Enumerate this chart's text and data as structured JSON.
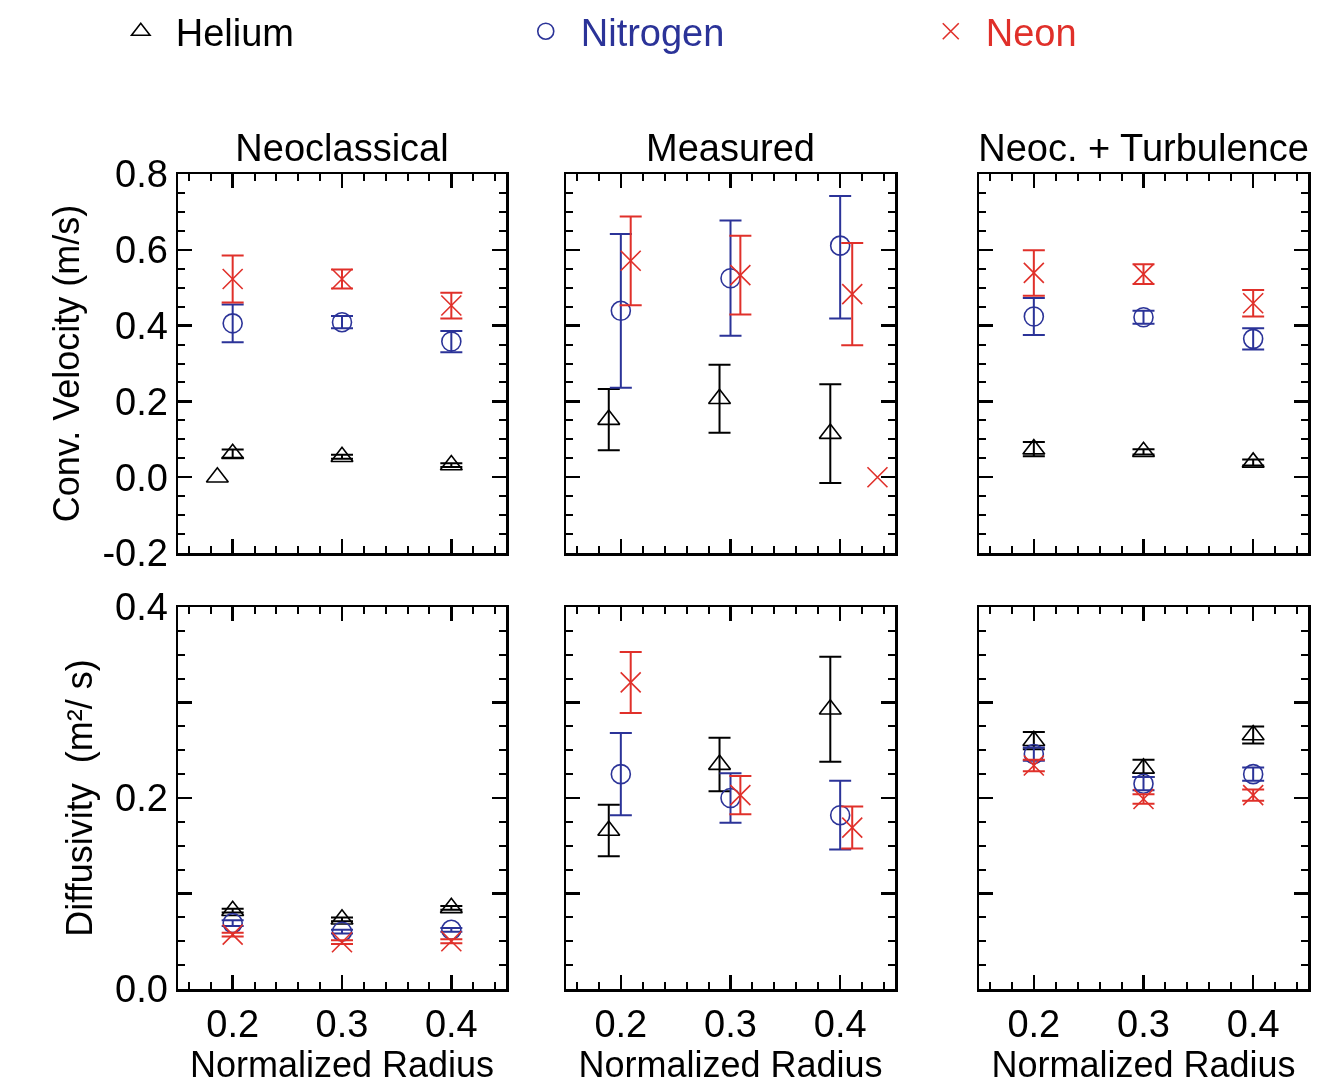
{
  "chart_data": [
    {
      "type": "scatter",
      "title": "Neoclassical",
      "ylabel": "Conv. Velocity (m/s)",
      "xlim": [
        0.15,
        0.45
      ],
      "xticks": [
        0.2,
        0.3,
        0.4
      ],
      "ylim": [
        -0.2,
        0.8
      ],
      "yticks": [
        -0.2,
        {
          "value": 0,
          "label": "0.0"
        },
        0.2,
        0.4,
        0.6,
        0.8
      ],
      "tick_labels": "y",
      "legend": "top",
      "series": [
        {
          "name": "Helium",
          "color": "#000000",
          "marker": "triangle",
          "x": [
            0.186,
            0.2,
            0.3,
            0.4
          ],
          "values": [
            0,
            0.062,
            0.054,
            0.032
          ],
          "errors": [
            null,
            0.011,
            0.005,
            0.005
          ]
        },
        {
          "name": "Nitrogen",
          "color": "#2b3398",
          "marker": "circle",
          "x": [
            0.2,
            0.3,
            0.4
          ],
          "values": [
            0.406,
            0.409,
            0.358
          ],
          "errors": [
            0.05,
            0.016,
            0.028
          ]
        },
        {
          "name": "Neon",
          "color": "#e0302a",
          "marker": "cross",
          "x": [
            0.2,
            0.3,
            0.4
          ],
          "values": [
            0.523,
            0.523,
            0.453
          ],
          "errors": [
            0.062,
            0.025,
            0.034
          ]
        }
      ]
    },
    {
      "type": "scatter",
      "title": "Measured",
      "xlim": [
        0.15,
        0.45
      ],
      "xticks": [
        0.2,
        0.3,
        0.4
      ],
      "ylim": [
        -0.2,
        0.8
      ],
      "yticks": [
        -0.2,
        0,
        0.2,
        0.4,
        0.6,
        0.8
      ],
      "tick_labels": false,
      "series": [
        {
          "color": "#000000",
          "marker": "triangle",
          "x": [
            0.189,
            0.29,
            0.391
          ],
          "values": [
            0.152,
            0.207,
            0.115
          ],
          "errors": [
            0.081,
            0.09,
            0.13
          ]
        },
        {
          "color": "#2b3398",
          "marker": "circle",
          "x": [
            0.2,
            0.3,
            0.4
          ],
          "values": [
            0.439,
            0.525,
            0.611
          ],
          "errors": [
            0.203,
            0.152,
            [
              0.419,
              0.742
            ]
          ]
        },
        {
          "color": "#e0302a",
          "marker": "cross",
          "x": [
            0.209,
            0.309,
            0.411,
            0.434
          ],
          "values": [
            0.571,
            0.533,
            0.483,
            0
          ],
          "errors": [
            0.117,
            0.104,
            0.135,
            null
          ]
        }
      ]
    },
    {
      "type": "scatter",
      "title": "Neoc. + Turbulence",
      "xlim": [
        0.15,
        0.45
      ],
      "xticks": [
        0.2,
        0.3,
        0.4
      ],
      "ylim": [
        -0.2,
        0.8
      ],
      "yticks": [
        -0.2,
        0,
        0.2,
        0.4,
        0.6,
        0.8
      ],
      "tick_labels": false,
      "series": [
        {
          "color": "#000000",
          "marker": "triangle",
          "x": [
            0.2,
            0.3,
            0.4
          ],
          "values": [
            0.074,
            0.067,
            0.039
          ],
          "errors": [
            0.019,
            0.007,
            0.008
          ]
        },
        {
          "color": "#2b3398",
          "marker": "circle",
          "x": [
            0.2,
            0.3,
            0.4
          ],
          "values": [
            0.424,
            0.422,
            0.365
          ],
          "errors": [
            0.049,
            0.017,
            0.028
          ]
        },
        {
          "color": "#e0302a",
          "marker": "cross",
          "x": [
            0.2,
            0.3,
            0.4
          ],
          "values": [
            0.539,
            0.536,
            0.459
          ],
          "errors": [
            0.06,
            0.026,
            0.035
          ]
        }
      ]
    },
    {
      "type": "scatter",
      "xlabel": "Normalized Radius",
      "ylabel": "Diffusivity  (m²/ s)",
      "xlim": [
        0.15,
        0.45
      ],
      "xticks": [
        0.2,
        0.3,
        0.4
      ],
      "ylim": [
        0,
        0.4
      ],
      "yticks": [
        {
          "value": 0,
          "label": "0.0"
        },
        {
          "value": 0.1,
          "label": null
        },
        0.2,
        {
          "value": 0.3,
          "label": null
        },
        0.4
      ],
      "series": [
        {
          "color": "#000000",
          "marker": "triangle",
          "x": [
            0.2,
            0.3,
            0.4
          ],
          "values": [
            0.082,
            0.073,
            0.085
          ],
          "errors": [
            0.002,
            0.002,
            0.002
          ]
        },
        {
          "color": "#2b3398",
          "marker": "circle",
          "x": [
            0.2,
            0.3,
            0.4
          ],
          "values": [
            0.069,
            0.06,
            0.062
          ],
          "errors": [
            0.003,
            0.002,
            0.002
          ]
        },
        {
          "color": "#e0302a",
          "marker": "cross",
          "x": [
            0.2,
            0.3,
            0.4
          ],
          "values": [
            0.057,
            0.049,
            0.05
          ],
          "errors": [
            0.002,
            0.002,
            0.002
          ]
        }
      ]
    },
    {
      "type": "scatter",
      "xlabel": "Normalized Radius",
      "xlim": [
        0.15,
        0.45
      ],
      "xticks": [
        0.2,
        0.3,
        0.4
      ],
      "ylim": [
        0,
        0.4
      ],
      "yticks": [
        0,
        0.1,
        0.2,
        0.3,
        0.4
      ],
      "tick_labels": "x",
      "series": [
        {
          "color": "#000000",
          "marker": "triangle",
          "x": [
            0.189,
            0.29,
            0.391
          ],
          "values": [
            0.166,
            0.235,
            0.293
          ],
          "errors": [
            0.027,
            0.028,
            0.055
          ]
        },
        {
          "color": "#2b3398",
          "marker": "circle",
          "x": [
            0.2,
            0.3,
            0.4
          ],
          "values": [
            0.225,
            0.2,
            0.182
          ],
          "errors": [
            0.043,
            0.026,
            0.036
          ]
        },
        {
          "color": "#e0302a",
          "marker": "cross",
          "x": [
            0.209,
            0.309,
            0.411
          ],
          "values": [
            0.321,
            0.203,
            0.169
          ],
          "errors": [
            0.032,
            0.02,
            0.022
          ]
        }
      ]
    },
    {
      "type": "scatter",
      "xlabel": "Normalized Radius",
      "xlim": [
        0.15,
        0.45
      ],
      "xticks": [
        0.2,
        0.3,
        0.4
      ],
      "ylim": [
        0,
        0.4
      ],
      "yticks": [
        0,
        0.1,
        0.2,
        0.3,
        0.4
      ],
      "tick_labels": "x",
      "series": [
        {
          "color": "#000000",
          "marker": "triangle",
          "x": [
            0.2,
            0.3,
            0.4
          ],
          "values": [
            0.26,
            0.231,
            0.266
          ],
          "errors": [
            0.009,
            0.009,
            0.009
          ]
        },
        {
          "color": "#2b3398",
          "marker": "circle",
          "x": [
            0.2,
            0.3,
            0.4
          ],
          "values": [
            0.246,
            0.215,
            0.225
          ],
          "errors": [
            0.007,
            0.007,
            0.007
          ]
        },
        {
          "color": "#e0302a",
          "marker": "cross",
          "x": [
            0.2,
            0.3,
            0.4
          ],
          "values": [
            0.234,
            0.199,
            0.203
          ],
          "errors": [
            0.006,
            0.005,
            0.006
          ]
        }
      ]
    }
  ]
}
